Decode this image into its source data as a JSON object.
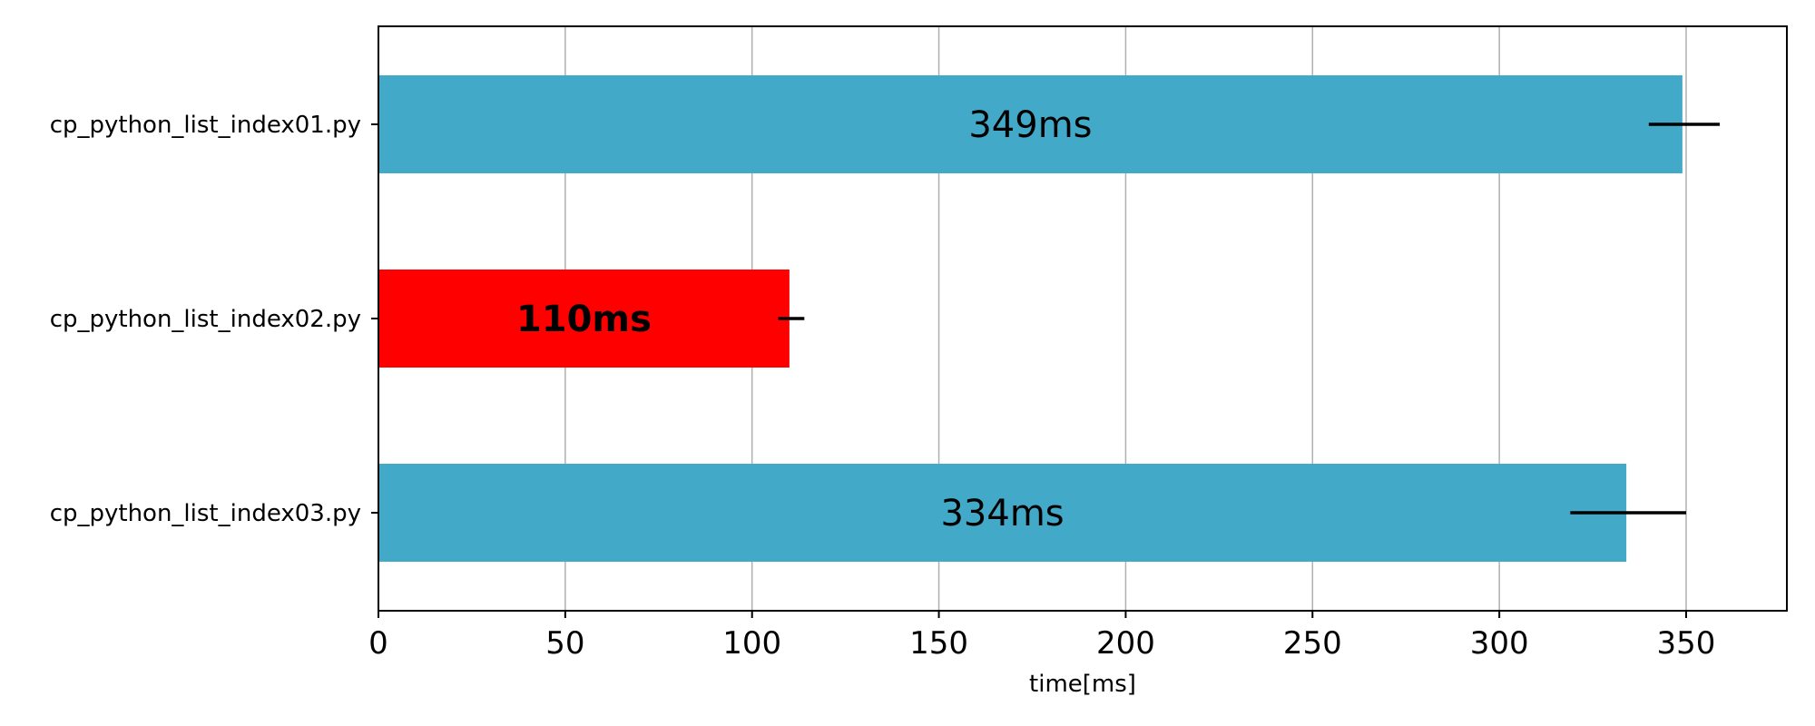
{
  "chart_data": {
    "type": "bar",
    "orientation": "horizontal",
    "categories": [
      "cp_python_list_index01.py",
      "cp_python_list_index02.py",
      "cp_python_list_index03.py"
    ],
    "values": [
      349,
      110,
      334
    ],
    "error_low": [
      340,
      107,
      319
    ],
    "error_high": [
      359,
      114,
      350
    ],
    "bar_labels": [
      "349ms",
      "110ms",
      "334ms"
    ],
    "highlight_index": 1,
    "colors": {
      "default": "#42aac8",
      "highlight": "#ff0000",
      "error": "#000000",
      "grid": "#b0b0b0"
    },
    "xticks": [
      "0",
      "50",
      "100",
      "150",
      "200",
      "250",
      "300",
      "350"
    ],
    "xlim": [
      0,
      377
    ],
    "xlabel": "time[ms]",
    "title": "",
    "ylabel": "",
    "grid": "x-only"
  }
}
